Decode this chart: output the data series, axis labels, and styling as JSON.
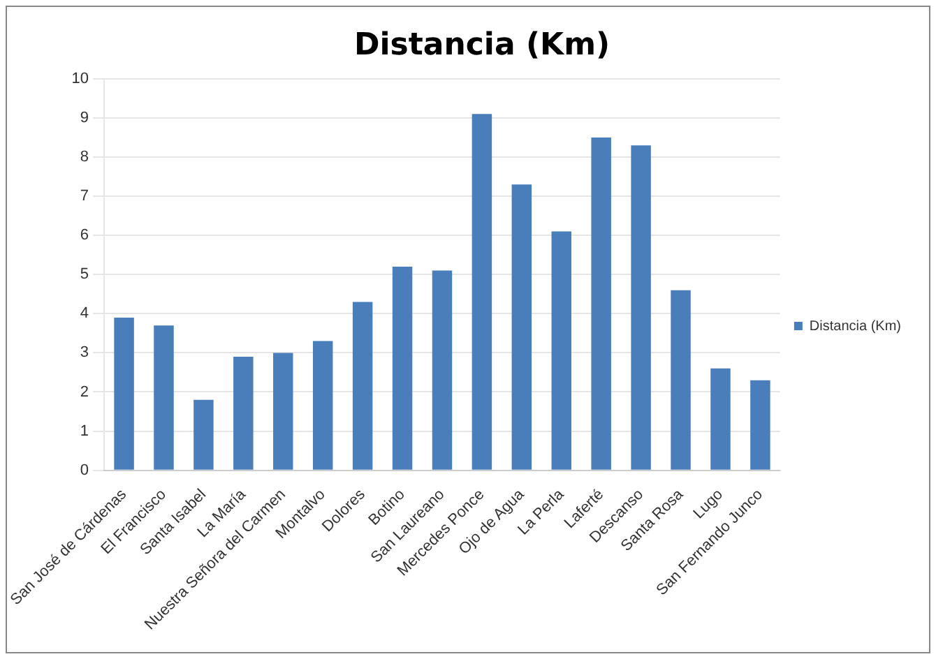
{
  "chart_data": {
    "type": "bar",
    "title": "Distancia (Km)",
    "categories": [
      "San José de Cárdenas",
      "El Francisco",
      "Santa Isabel",
      "La María",
      "Nuestra Señora del Carmen",
      "Montalvo",
      "Dolores",
      "Botino",
      "San Laureano",
      "Mercedes Ponce",
      "Ojo de Agua",
      "La Perla",
      "Laferté",
      "Descanso",
      "Santa Rosa",
      "Lugo",
      "San Fernando Junco"
    ],
    "series": [
      {
        "name": "Distancia (Km)",
        "color": "#4a7ebb",
        "values": [
          3.9,
          3.7,
          1.8,
          2.9,
          3.0,
          3.3,
          4.3,
          5.2,
          5.1,
          9.1,
          7.3,
          6.1,
          8.5,
          8.3,
          4.6,
          2.6,
          2.3
        ]
      }
    ],
    "ylim": [
      0,
      10
    ],
    "yticks": [
      0,
      1,
      2,
      3,
      4,
      5,
      6,
      7,
      8,
      9,
      10
    ],
    "grid": "y",
    "legend": "right"
  }
}
